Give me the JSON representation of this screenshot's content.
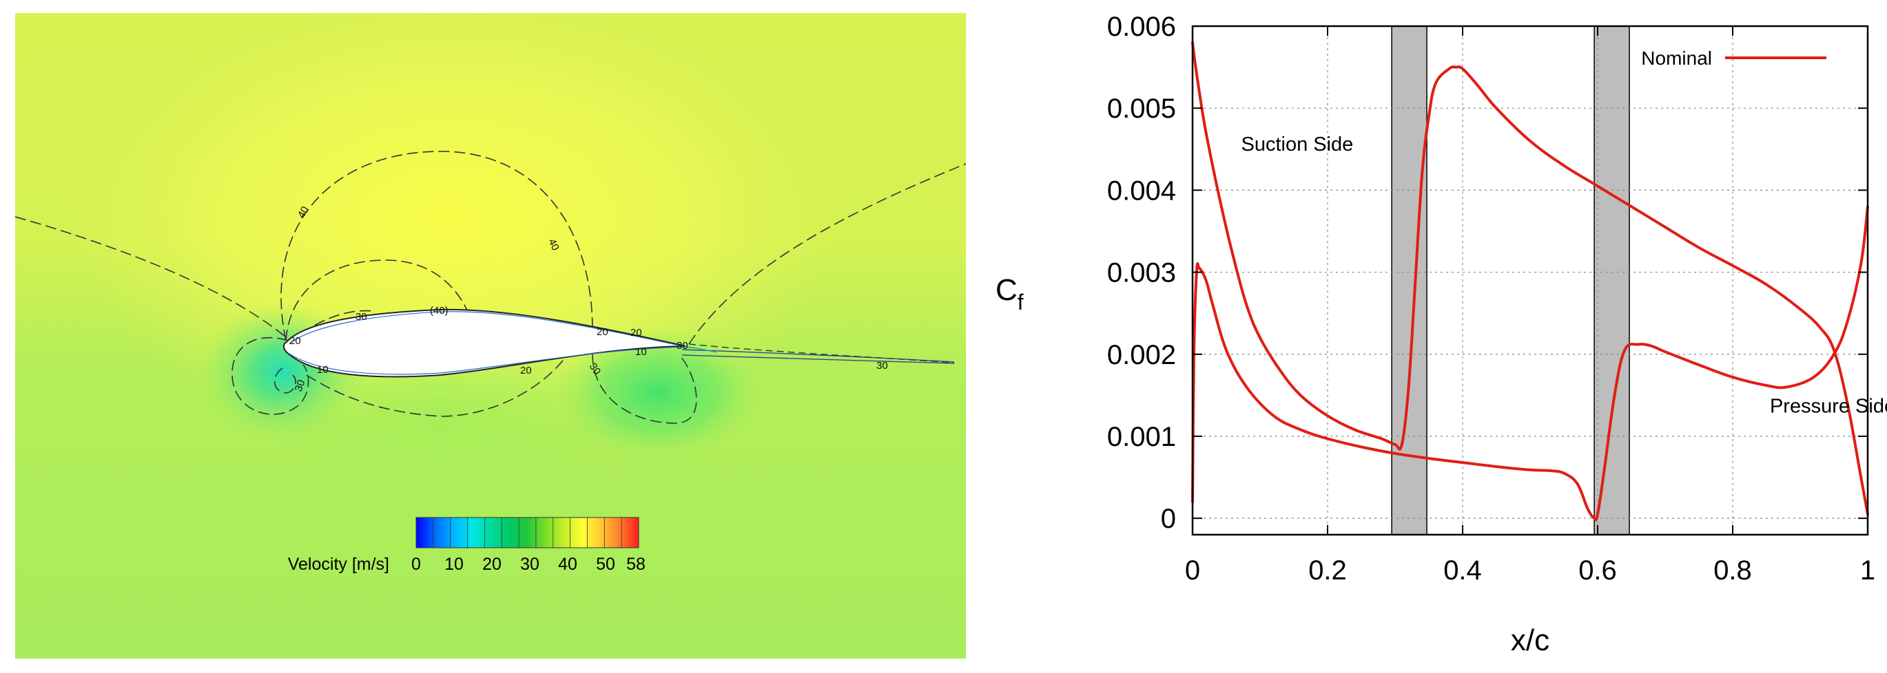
{
  "chart_data": [
    {
      "type": "heatmap",
      "title": "",
      "colorbar": {
        "label": "Velocity [m/s]",
        "ticks": [
          "0",
          "10",
          "20",
          "30",
          "40",
          "50",
          "58"
        ],
        "range": [
          0,
          58
        ],
        "colors": [
          "#0000ff",
          "#0066ff",
          "#00b4ff",
          "#00e6e6",
          "#00dca0",
          "#00c864",
          "#22c83c",
          "#78dc28",
          "#c8f028",
          "#ffff32",
          "#ffc832",
          "#ff7828",
          "#ff1e1e"
        ]
      },
      "contour_labels": [
        "40",
        "40",
        "30",
        "(40)",
        "20",
        "20",
        "30",
        "10",
        "20",
        "30",
        "10",
        "30",
        "20",
        "30"
      ]
    },
    {
      "type": "line",
      "title": "",
      "xlabel": "x/c",
      "ylabel": "C",
      "ylabel_subscript": "f",
      "xlim": [
        0,
        1
      ],
      "ylim": [
        -0.0002,
        0.006
      ],
      "xticks": [
        0,
        0.2,
        0.4,
        0.6,
        0.8,
        1
      ],
      "xtick_labels": [
        "0",
        "0.2",
        "0.4",
        "0.6",
        "0.8",
        "1"
      ],
      "yticks": [
        0,
        0.001,
        0.002,
        0.003,
        0.004,
        0.005,
        0.006
      ],
      "ytick_labels": [
        "0",
        "0.001",
        "0.002",
        "0.003",
        "0.004",
        "0.005",
        "0.006"
      ],
      "grid": true,
      "legend": {
        "position": "top-right",
        "entries": [
          "Nominal"
        ]
      },
      "line_color": "#e01e14",
      "shaded_regions": [
        [
          0.295,
          0.347
        ],
        [
          0.595,
          0.647
        ]
      ],
      "annotations": [
        {
          "text": "Suction Side",
          "x": 0.155,
          "y": 0.00448
        },
        {
          "text": "Pressure Side",
          "x": 0.948,
          "y": 0.00129
        }
      ],
      "series": [
        {
          "name": "Nominal",
          "segments": [
            {
              "side": "suction",
              "x": [
                0,
                0.003,
                0.01,
                0.02,
                0.04,
                0.06,
                0.08,
                0.1,
                0.13,
                0.16,
                0.2,
                0.24,
                0.28,
                0.3,
                0.31,
                0.32,
                0.33,
                0.34,
                0.35,
                0.36,
                0.38,
                0.39,
                0.4,
                0.42,
                0.45,
                0.5,
                0.55,
                0.6,
                0.65,
                0.7,
                0.75,
                0.8,
                0.85,
                0.9,
                0.93,
                0.95,
                0.97,
                0.99,
                1.0
              ],
              "y": [
                0.0058,
                0.0056,
                0.0052,
                0.0047,
                0.0039,
                0.0032,
                0.0026,
                0.0022,
                0.0018,
                0.0015,
                0.00125,
                0.00108,
                0.00097,
                0.0009,
                0.0009,
                0.0016,
                0.0029,
                0.0042,
                0.0049,
                0.0053,
                0.00548,
                0.0055,
                0.00548,
                0.0053,
                0.005,
                0.0046,
                0.0043,
                0.00405,
                0.0038,
                0.00355,
                0.0033,
                0.00308,
                0.00285,
                0.00255,
                0.00232,
                0.00205,
                0.0014,
                0.0005,
                5e-05
              ]
            },
            {
              "side": "pressure",
              "x": [
                0,
                0.002,
                0.006,
                0.01,
                0.02,
                0.03,
                0.05,
                0.08,
                0.12,
                0.16,
                0.2,
                0.25,
                0.3,
                0.35,
                0.4,
                0.45,
                0.5,
                0.53,
                0.55,
                0.57,
                0.585,
                0.595,
                0.6,
                0.61,
                0.625,
                0.64,
                0.66,
                0.68,
                0.7,
                0.75,
                0.8,
                0.85,
                0.88,
                0.92,
                0.95,
                0.97,
                0.99,
                1.0
              ],
              "y": [
                0.0002,
                0.002,
                0.003,
                0.00305,
                0.0029,
                0.0026,
                0.00205,
                0.0016,
                0.00125,
                0.00108,
                0.00097,
                0.00087,
                0.00079,
                0.00073,
                0.00068,
                0.00063,
                0.00059,
                0.00058,
                0.00055,
                0.00042,
                0.00012,
                0.0,
                5e-05,
                0.0006,
                0.0015,
                0.00205,
                0.00212,
                0.0021,
                0.00203,
                0.00187,
                0.00172,
                0.00162,
                0.0016,
                0.00172,
                0.002,
                0.0024,
                0.0031,
                0.0038
              ]
            }
          ]
        }
      ]
    }
  ]
}
